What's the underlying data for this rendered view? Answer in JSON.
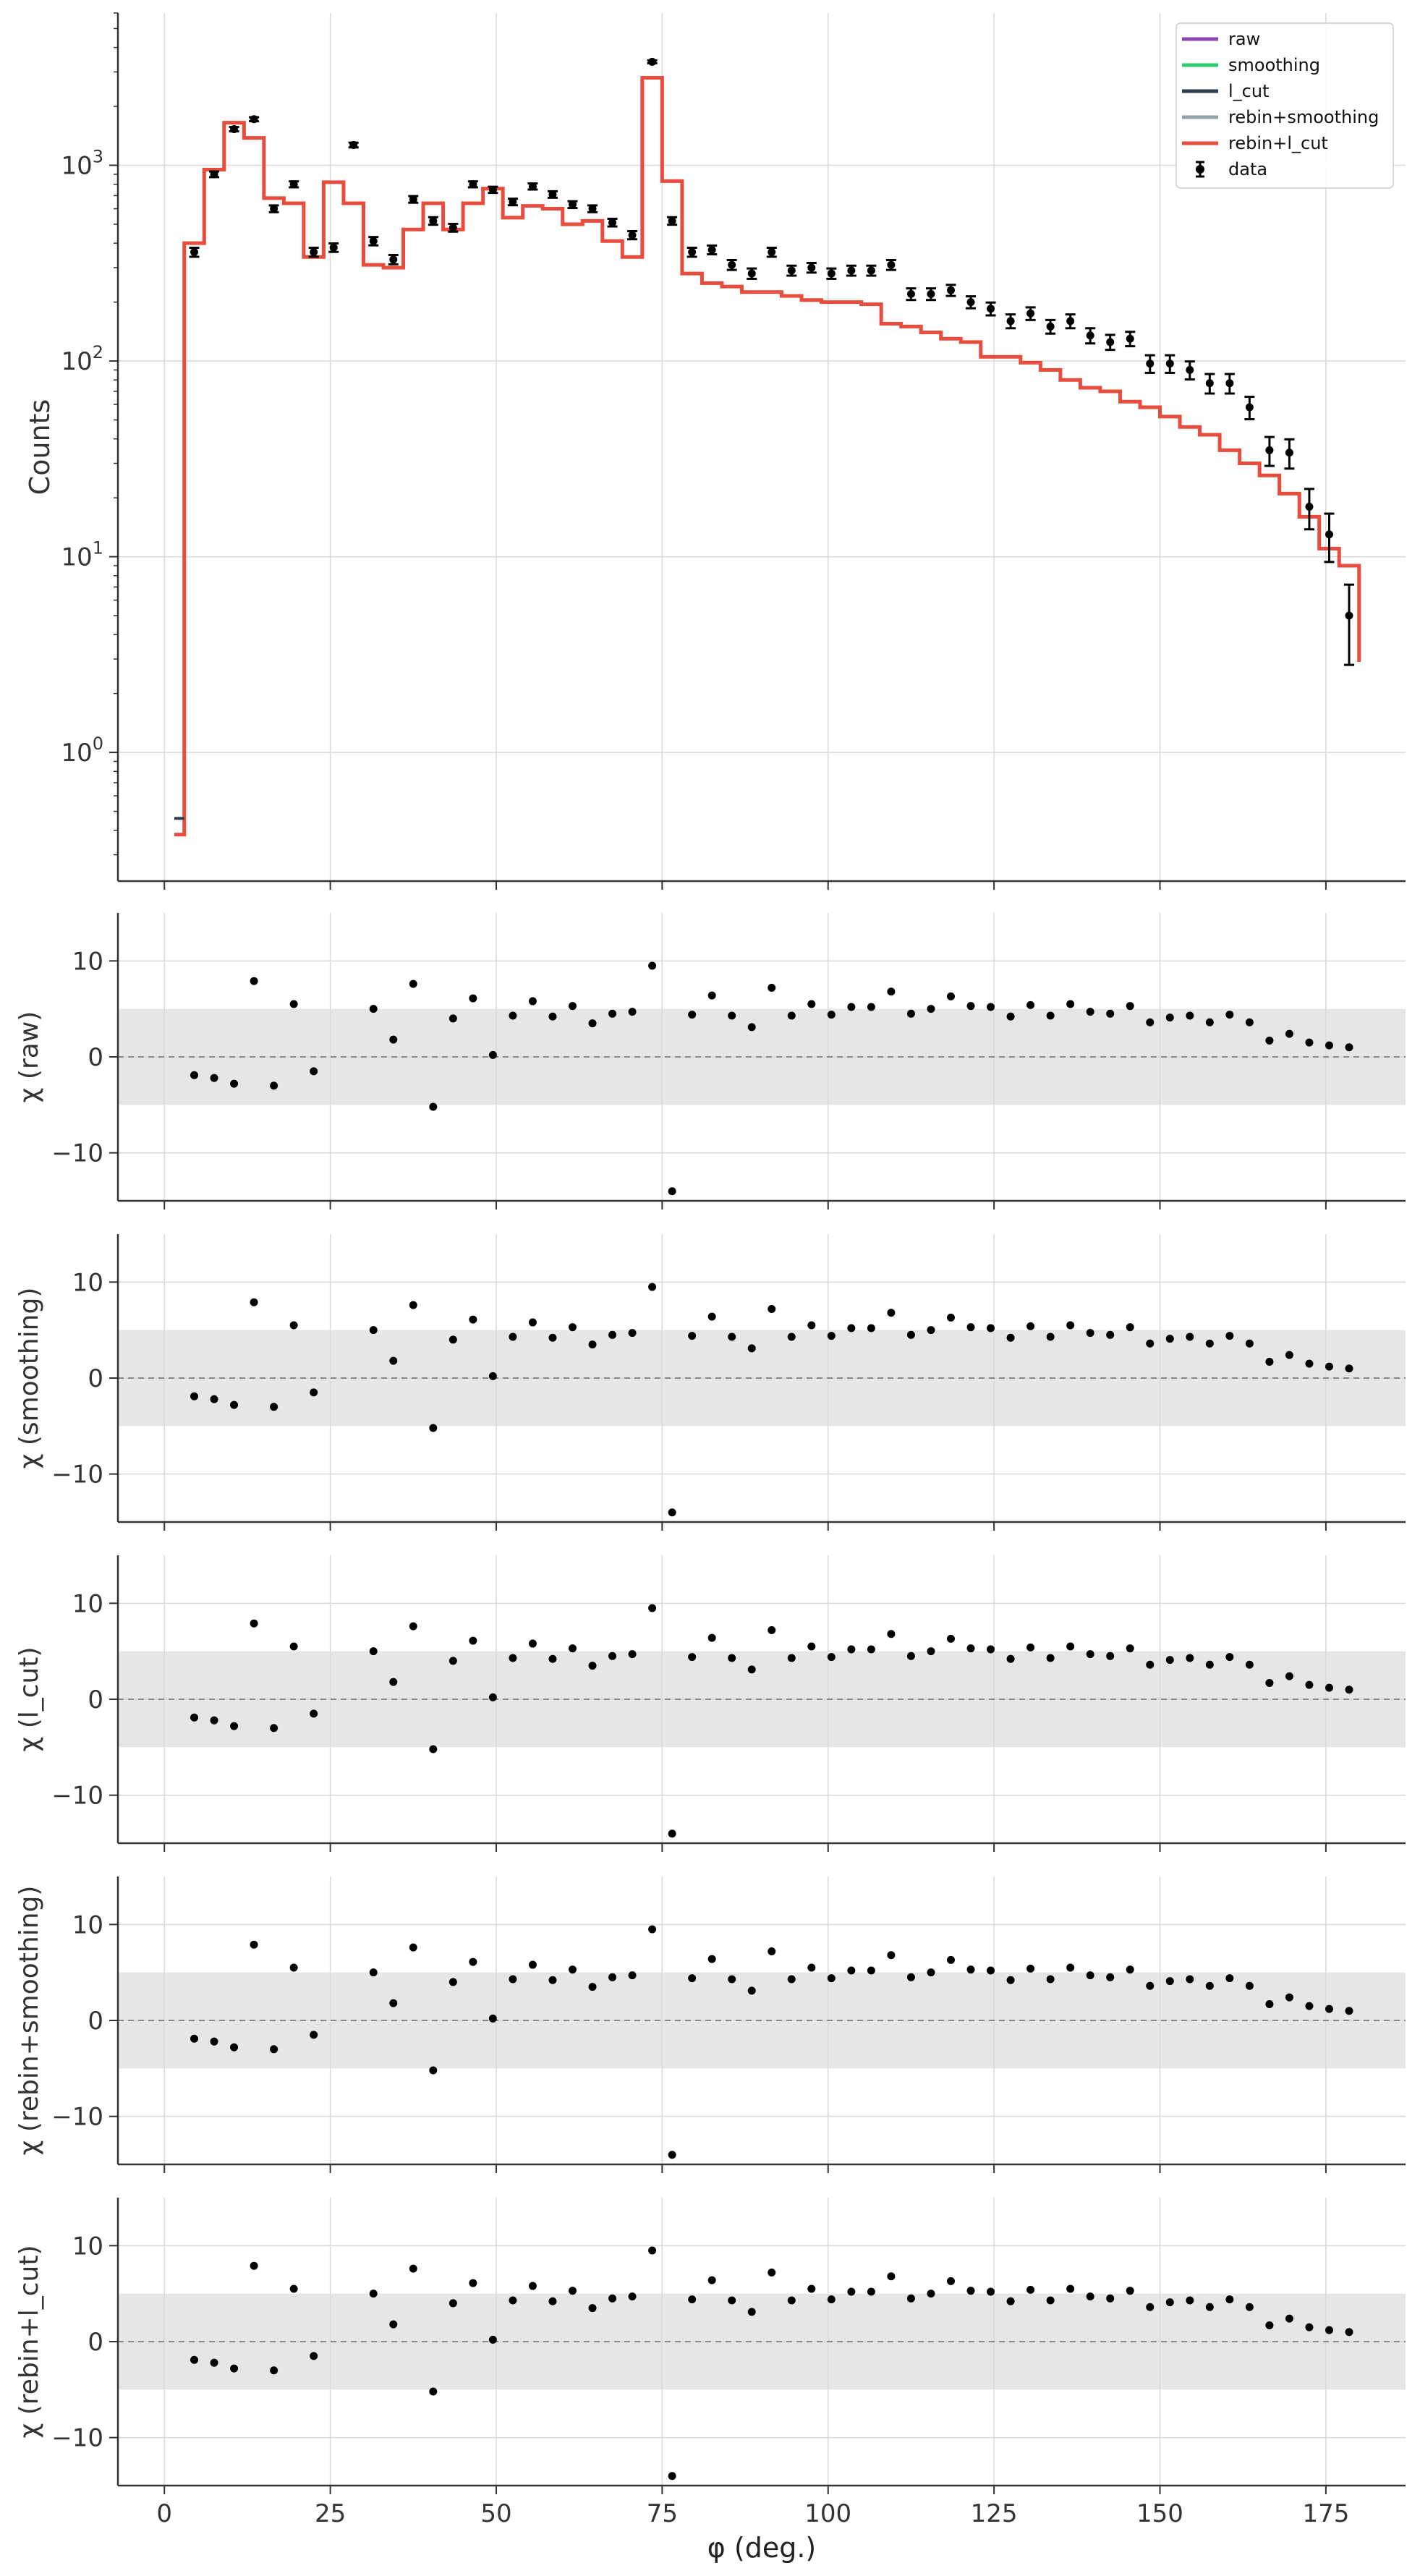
{
  "chart_data": {
    "type": "step-histogram-with-residuals",
    "x": [
      4.5,
      7.5,
      10.5,
      13.5,
      16.5,
      19.5,
      22.5,
      25.5,
      28.5,
      31.5,
      34.5,
      37.5,
      40.5,
      43.5,
      46.5,
      49.5,
      52.5,
      55.5,
      58.5,
      61.5,
      64.5,
      67.5,
      70.5,
      73.5,
      76.5,
      79.5,
      82.5,
      85.5,
      88.5,
      91.5,
      94.5,
      97.5,
      100.5,
      103.5,
      106.5,
      109.5,
      112.5,
      115.5,
      118.5,
      121.5,
      124.5,
      127.5,
      130.5,
      133.5,
      136.5,
      139.5,
      142.5,
      145.5,
      148.5,
      151.5,
      154.5,
      157.5,
      160.5,
      163.5,
      166.5,
      169.5,
      172.5,
      175.5,
      178.5
    ],
    "xlabel": "φ (deg.)",
    "xlim": [
      -7,
      187
    ],
    "xticks": [
      0,
      25,
      50,
      75,
      100,
      125,
      150,
      175
    ],
    "counts": {
      "ylabel": "Counts",
      "yscale": "log",
      "ylim": [
        0.22,
        6000
      ],
      "yticks": [
        {
          "value": 1,
          "base": "10",
          "exp": "0"
        },
        {
          "value": 10,
          "base": "10",
          "exp": "1"
        },
        {
          "value": 100,
          "base": "10",
          "exp": "2"
        },
        {
          "value": 1000,
          "base": "10",
          "exp": "3"
        }
      ],
      "data": {
        "name": "data",
        "values": [
          360,
          900,
          1530,
          1720,
          600,
          800,
          360,
          380,
          1270,
          410,
          330,
          670,
          520,
          480,
          800,
          750,
          650,
          780,
          710,
          630,
          600,
          510,
          440,
          3380,
          520,
          360,
          370,
          310,
          280,
          360,
          290,
          300,
          280,
          290,
          290,
          310,
          220,
          220,
          230,
          200,
          185,
          160,
          175,
          150,
          160,
          135,
          125,
          130,
          97,
          97,
          90,
          77,
          77,
          58,
          35,
          34,
          18,
          13,
          5
        ],
        "errors": [
          19,
          30,
          39,
          41,
          24,
          28,
          19,
          19,
          36,
          20,
          18,
          26,
          23,
          22,
          28,
          27,
          25,
          28,
          27,
          25,
          24,
          23,
          21,
          58,
          23,
          19,
          19,
          18,
          17,
          19,
          17,
          17,
          17,
          17,
          17,
          18,
          15,
          15,
          15,
          14,
          14,
          13,
          13,
          12,
          13,
          12,
          11,
          11,
          10,
          10,
          9.5,
          8.8,
          8.8,
          7.6,
          5.9,
          5.8,
          4.2,
          3.6,
          2.2
        ]
      },
      "model_edges": [
        1.5,
        3,
        6,
        9,
        12,
        15,
        18,
        21,
        24,
        27,
        30,
        33,
        36,
        39,
        42,
        45,
        48,
        51,
        54,
        57,
        60,
        63,
        66,
        69,
        72,
        75,
        78,
        81,
        84,
        87,
        90,
        93,
        96,
        99,
        102,
        105,
        108,
        111,
        114,
        117,
        120,
        123,
        126,
        129,
        132,
        135,
        138,
        141,
        144,
        147,
        150,
        153,
        156,
        159,
        162,
        165,
        168,
        171,
        174,
        177,
        180
      ],
      "model_values": [
        0.38,
        400,
        950,
        1650,
        1380,
        680,
        640,
        340,
        820,
        640,
        310,
        300,
        470,
        640,
        470,
        640,
        760,
        540,
        620,
        600,
        500,
        520,
        410,
        340,
        2800,
        830,
        280,
        250,
        240,
        225,
        225,
        215,
        205,
        200,
        200,
        195,
        155,
        150,
        140,
        130,
        125,
        105,
        105,
        98,
        90,
        80,
        73,
        70,
        62,
        58,
        52,
        46,
        42,
        35,
        30,
        26,
        21,
        16,
        11,
        9,
        2.9
      ],
      "series": [
        {
          "name": "raw",
          "color": "#8e44ad"
        },
        {
          "name": "smoothing",
          "color": "#2ecc71"
        },
        {
          "name": "l_cut",
          "color": "#2c3e50"
        },
        {
          "name": "rebin+smoothing",
          "color": "#95a5a6"
        },
        {
          "name": "rebin+l_cut",
          "color": "#e74c3c"
        }
      ],
      "legend_data_label": "data",
      "legend_location": "top-right"
    },
    "residuals": {
      "ylim": [
        -15,
        15
      ],
      "yticks": [
        10,
        0,
        -10
      ],
      "ytick_labels": [
        "10",
        "0",
        "−10"
      ],
      "band": [
        -5,
        5
      ],
      "values": [
        -1.9,
        -2.2,
        -2.8,
        7.9,
        -3,
        5.5,
        -1.5,
        null,
        null,
        5,
        1.8,
        7.6,
        -5.2,
        4,
        6.1,
        0.2,
        4.3,
        5.8,
        4.2,
        5.3,
        3.5,
        4.5,
        4.7,
        9.5,
        -14,
        4.4,
        6.4,
        4.3,
        3.1,
        7.2,
        4.3,
        5.5,
        4.4,
        5.2,
        5.2,
        6.8,
        4.5,
        5,
        6.3,
        5.3,
        5.2,
        4.2,
        5.4,
        4.3,
        5.5,
        4.7,
        4.5,
        5.3,
        3.6,
        4.1,
        4.3,
        3.6,
        4.4,
        3.6,
        1.7,
        2.4,
        1.5,
        1.2,
        1
      ]
    },
    "panels": [
      {
        "ylabel": "χ (raw)"
      },
      {
        "ylabel": "χ (smoothing)"
      },
      {
        "ylabel": "χ (l_cut)"
      },
      {
        "ylabel": "χ (rebin+smoothing)"
      },
      {
        "ylabel": "χ (rebin+l_cut)"
      }
    ]
  }
}
